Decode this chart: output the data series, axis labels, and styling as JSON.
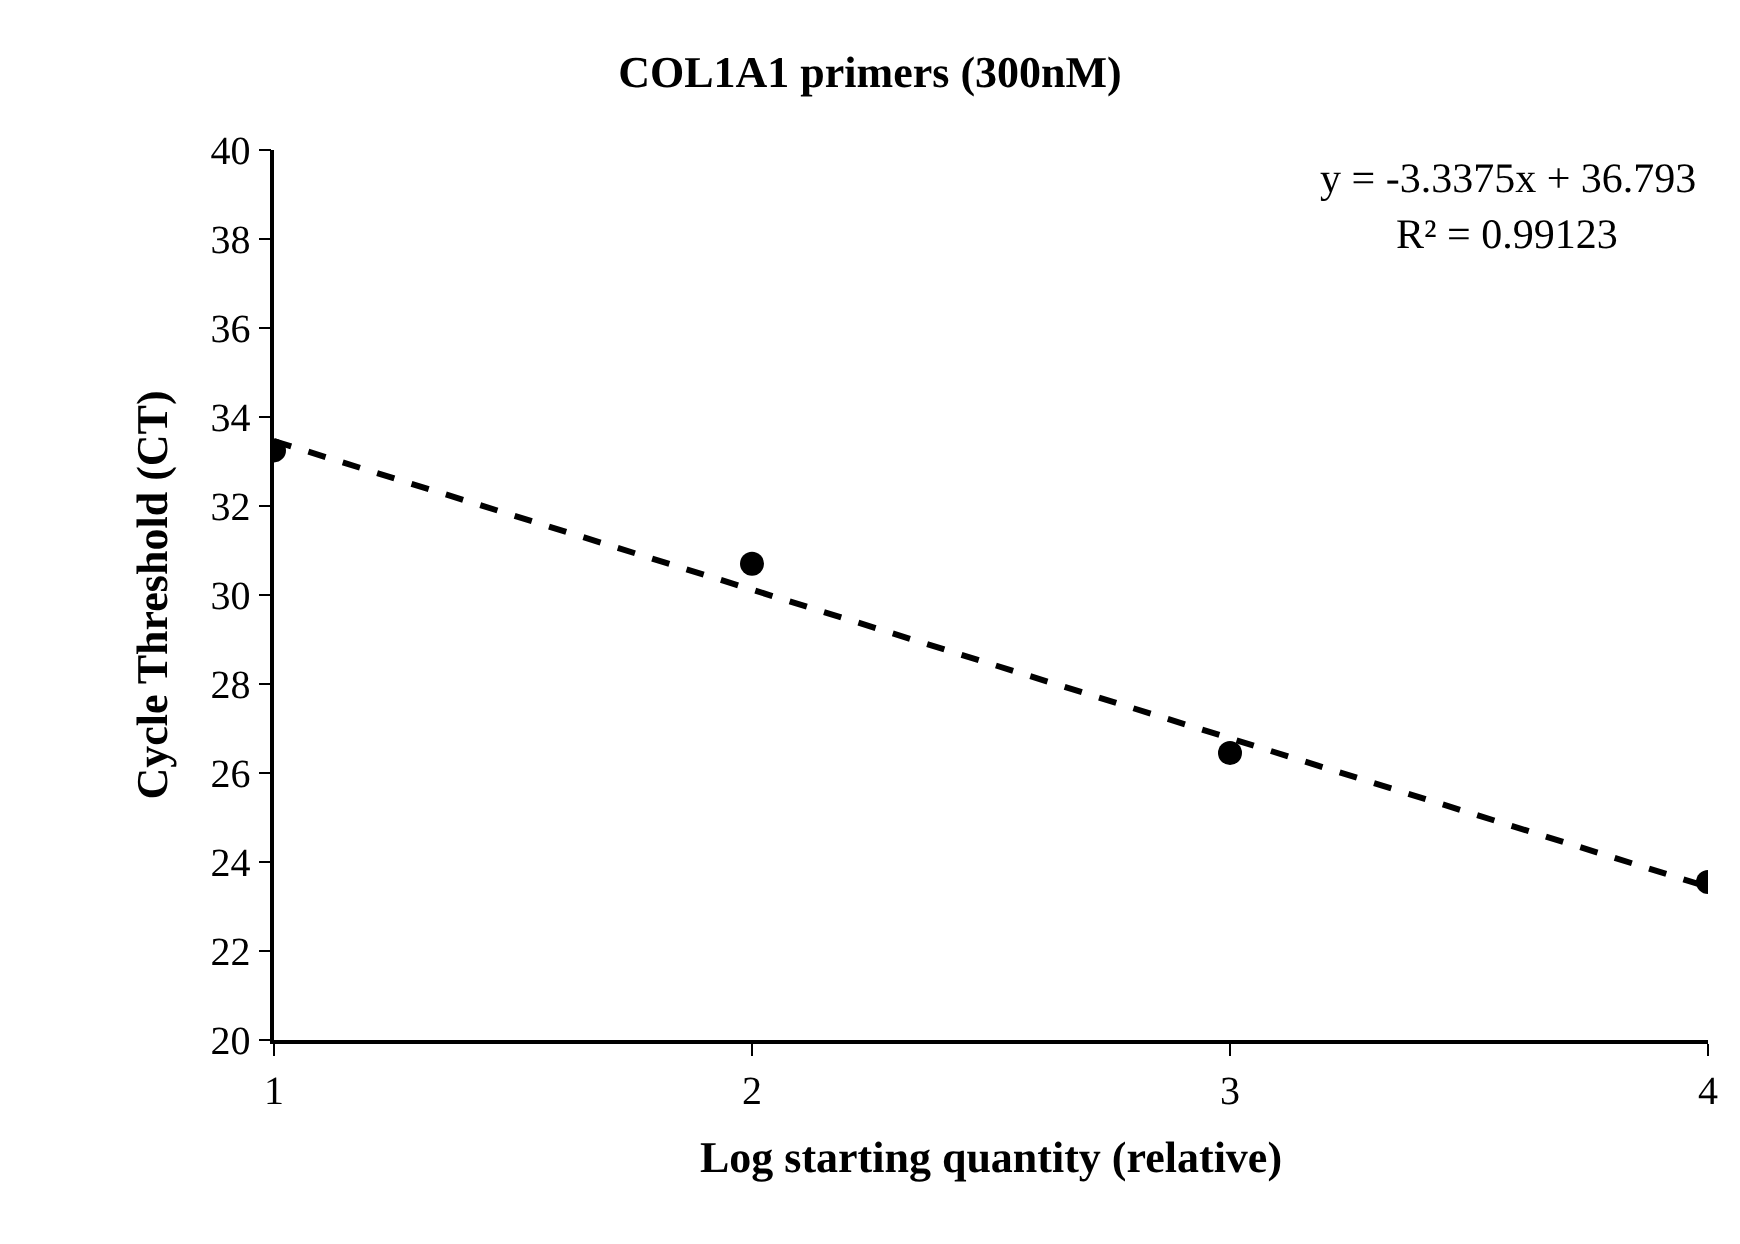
{
  "chart_data": {
    "type": "scatter",
    "title": "COL1A1 primers (300nM)",
    "xlabel": "Log starting quantity (relative)",
    "ylabel": "Cycle Threshold (CT)",
    "x": [
      1,
      2,
      3,
      4
    ],
    "series": [
      {
        "color": "#000000",
        "values": [
          33.25,
          30.7,
          26.45,
          23.55
        ],
        "marker": "circle"
      },
      {
        "type": "line",
        "color": "#000000",
        "x": [
          1,
          4
        ],
        "values": [
          33.46,
          23.44
        ],
        "line_style": "dashed",
        "marker": "none"
      }
    ],
    "annotations": [
      "y = -3.3375x + 36.793",
      "R² = 0.99123"
    ],
    "xlim": [
      1,
      4
    ],
    "xticks": [
      1,
      2,
      3,
      4
    ],
    "ylim": [
      20,
      40
    ],
    "yticks": [
      20,
      22,
      24,
      26,
      28,
      30,
      32,
      34,
      36,
      38,
      40
    ]
  }
}
